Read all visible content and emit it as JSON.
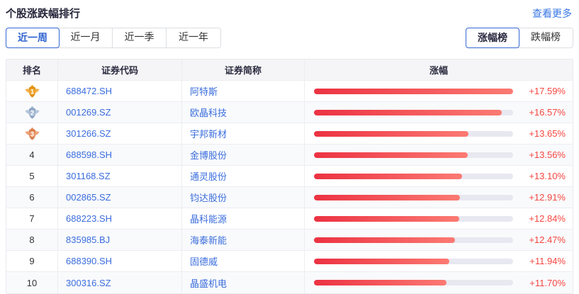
{
  "header": {
    "title": "个股涨跌幅排行",
    "more_link": "查看更多"
  },
  "period_tabs": [
    {
      "label": "近一周",
      "active": true
    },
    {
      "label": "近一月",
      "active": false
    },
    {
      "label": "近一季",
      "active": false
    },
    {
      "label": "近一年",
      "active": false
    }
  ],
  "board_tabs": [
    {
      "label": "涨幅榜",
      "active": true
    },
    {
      "label": "跌幅榜",
      "active": false
    }
  ],
  "table": {
    "columns": [
      "排名",
      "证券代码",
      "证券简称",
      "涨幅"
    ],
    "rows": [
      {
        "rank": "1",
        "medal": "gold",
        "code": "688472.SH",
        "name": "阿特斯",
        "change": "+17.59%",
        "value": 17.59
      },
      {
        "rank": "2",
        "medal": "silver",
        "code": "001269.SZ",
        "name": "欧晶科技",
        "change": "+16.57%",
        "value": 16.57
      },
      {
        "rank": "3",
        "medal": "bronze",
        "code": "301266.SZ",
        "name": "宇邦新材",
        "change": "+13.65%",
        "value": 13.65
      },
      {
        "rank": "4",
        "medal": null,
        "code": "688598.SH",
        "name": "金博股份",
        "change": "+13.56%",
        "value": 13.56
      },
      {
        "rank": "5",
        "medal": null,
        "code": "301168.SZ",
        "name": "通灵股份",
        "change": "+13.10%",
        "value": 13.1
      },
      {
        "rank": "6",
        "medal": null,
        "code": "002865.SZ",
        "name": "钧达股份",
        "change": "+12.91%",
        "value": 12.91
      },
      {
        "rank": "7",
        "medal": null,
        "code": "688223.SH",
        "name": "晶科能源",
        "change": "+12.84%",
        "value": 12.84
      },
      {
        "rank": "8",
        "medal": null,
        "code": "835985.BJ",
        "name": "海泰新能",
        "change": "+12.47%",
        "value": 12.47
      },
      {
        "rank": "9",
        "medal": null,
        "code": "688390.SH",
        "name": "固德威",
        "change": "+11.94%",
        "value": 11.94
      },
      {
        "rank": "10",
        "medal": null,
        "code": "300316.SZ",
        "name": "晶盛机电",
        "change": "+11.70%",
        "value": 11.7
      }
    ]
  },
  "chart_data": {
    "type": "bar",
    "title": "个股涨跌幅排行 - 近一周涨幅榜",
    "categories": [
      "阿特斯",
      "欧晶科技",
      "宇邦新材",
      "金博股份",
      "通灵股份",
      "钧达股份",
      "晶科能源",
      "海泰新能",
      "固德威",
      "晶盛机电"
    ],
    "values": [
      17.59,
      16.57,
      13.65,
      13.56,
      13.1,
      12.91,
      12.84,
      12.47,
      11.94,
      11.7
    ],
    "xlabel": "",
    "ylabel": "涨幅 (%)",
    "ylim": [
      0,
      17.59
    ]
  },
  "colors": {
    "accent_blue": "#3a6ddc",
    "link_blue": "#3877e6",
    "rise_red": "#f5463f",
    "bar_gradient_start": "#ec3242",
    "bar_gradient_end": "#fb7a73",
    "bar_track": "#e8e8f1",
    "header_bg": "#f5f5f7",
    "medals": {
      "gold": {
        "main": "#f0a62f",
        "dark": "#dd9015"
      },
      "silver": {
        "main": "#a9bcd4",
        "dark": "#8fa6c4"
      },
      "bronze": {
        "main": "#e9976a",
        "dark": "#d87e4e"
      }
    }
  }
}
